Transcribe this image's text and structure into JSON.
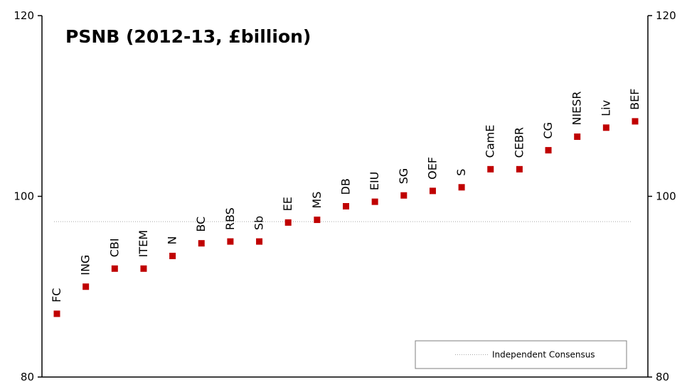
{
  "chart_data": {
    "type": "scatter",
    "title": "PSNB (2012-13, £billion)",
    "ylim": [
      80,
      120
    ],
    "y_ticks": [
      "80",
      "100",
      "120"
    ],
    "grid": false,
    "legend_position": "bottom-right",
    "colors": {
      "marker": "#c00000",
      "consensus_line": "#a6a6a6",
      "axis": "#000000"
    },
    "series": [
      {
        "marker": "square",
        "points": [
          {
            "label": "FC",
            "y": 87.0
          },
          {
            "label": "ING",
            "y": 90.0
          },
          {
            "label": "CBI",
            "y": 92.0
          },
          {
            "label": "ITEM",
            "y": 92.0
          },
          {
            "label": "N",
            "y": 93.4
          },
          {
            "label": "BC",
            "y": 94.8
          },
          {
            "label": "RBS",
            "y": 95.0
          },
          {
            "label": "Sb",
            "y": 95.0
          },
          {
            "label": "EE",
            "y": 97.1
          },
          {
            "label": "MS",
            "y": 97.4
          },
          {
            "label": "DB",
            "y": 98.9
          },
          {
            "label": "EIU",
            "y": 99.4
          },
          {
            "label": "SG",
            "y": 100.1
          },
          {
            "label": "OEF",
            "y": 100.6
          },
          {
            "label": "S",
            "y": 101.0
          },
          {
            "label": "CamE",
            "y": 103.0
          },
          {
            "label": "CEBR",
            "y": 103.0
          },
          {
            "label": "CG",
            "y": 105.1
          },
          {
            "label": "NIESR",
            "y": 106.6
          },
          {
            "label": "Liv",
            "y": 107.6
          },
          {
            "label": "BEF",
            "y": 108.3
          }
        ]
      }
    ],
    "consensus": {
      "name": "Independent Consensus",
      "value": 97.2
    }
  }
}
